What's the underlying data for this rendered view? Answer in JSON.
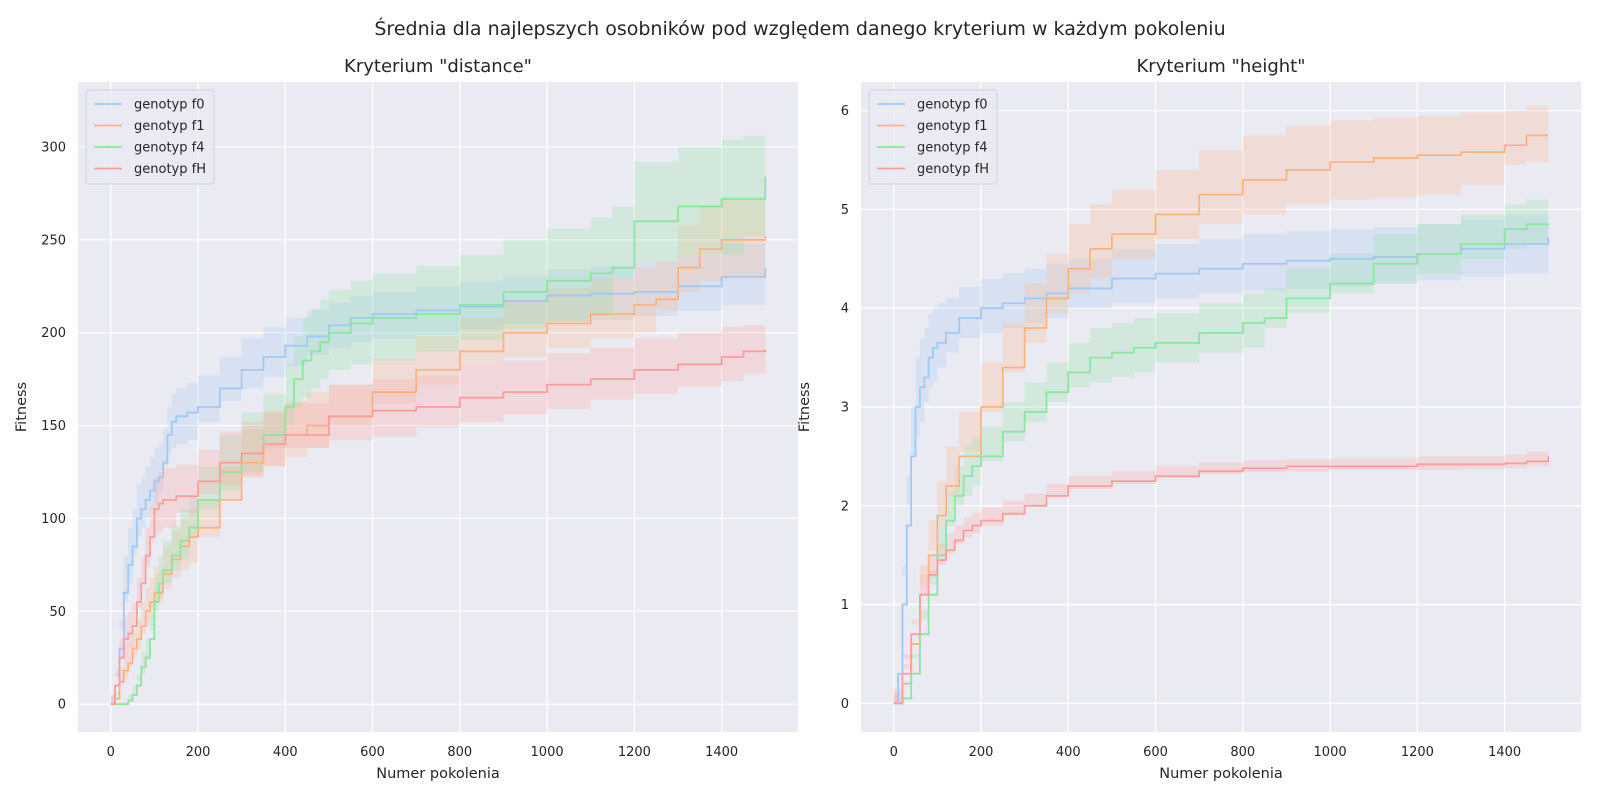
{
  "figure": {
    "suptitle": "Średnia dla najlepszych osobników pod względem danego kryterium w każdym pokoleniu"
  },
  "chart_data": [
    {
      "type": "line",
      "title": "Kryterium \"distance\"",
      "xlabel": "Numer pokolenia",
      "ylabel": "Fitness",
      "xlim": [
        -75,
        1575
      ],
      "ylim": [
        -15,
        335
      ],
      "xticks": [
        0,
        200,
        400,
        600,
        800,
        1000,
        1200,
        1400
      ],
      "yticks": [
        0,
        50,
        100,
        150,
        200,
        250,
        300
      ],
      "grid": true,
      "legend": "top-left",
      "series": [
        {
          "name": "genotyp f0",
          "color": "#a1c9f4",
          "x": [
            0,
            10,
            20,
            30,
            40,
            50,
            60,
            70,
            80,
            90,
            100,
            110,
            120,
            130,
            140,
            150,
            175,
            200,
            250,
            300,
            350,
            400,
            450,
            500,
            550,
            600,
            700,
            800,
            900,
            1000,
            1100,
            1200,
            1300,
            1400,
            1500
          ],
          "y": [
            0,
            10,
            30,
            60,
            75,
            85,
            100,
            105,
            110,
            115,
            120,
            122,
            130,
            145,
            152,
            155,
            157,
            160,
            170,
            180,
            187,
            193,
            198,
            204,
            208,
            210,
            212,
            214,
            217,
            220,
            221,
            222,
            225,
            230,
            235
          ],
          "band_low": [
            0,
            5,
            15,
            40,
            55,
            65,
            80,
            90,
            95,
            100,
            105,
            108,
            115,
            128,
            135,
            138,
            140,
            142,
            152,
            163,
            170,
            176,
            182,
            188,
            192,
            195,
            197,
            199,
            202,
            205,
            206,
            207,
            209,
            212,
            215
          ],
          "band_high": [
            0,
            18,
            45,
            80,
            95,
            105,
            118,
            122,
            128,
            133,
            138,
            140,
            148,
            160,
            167,
            170,
            173,
            177,
            187,
            197,
            203,
            208,
            212,
            216,
            220,
            222,
            225,
            228,
            231,
            234,
            236,
            238,
            242,
            248,
            255
          ]
        },
        {
          "name": "genotyp f1",
          "color": "#ffb482",
          "x": [
            0,
            10,
            20,
            30,
            40,
            50,
            60,
            70,
            80,
            90,
            100,
            120,
            140,
            160,
            180,
            200,
            250,
            300,
            350,
            400,
            450,
            500,
            600,
            700,
            800,
            900,
            1000,
            1100,
            1200,
            1250,
            1300,
            1350,
            1400,
            1500
          ],
          "y": [
            0,
            3,
            12,
            18,
            22,
            30,
            35,
            42,
            50,
            55,
            60,
            70,
            78,
            85,
            90,
            95,
            110,
            130,
            140,
            145,
            150,
            155,
            168,
            180,
            190,
            200,
            205,
            210,
            215,
            218,
            235,
            245,
            250,
            252
          ],
          "band_low": [
            0,
            1,
            5,
            10,
            14,
            20,
            25,
            30,
            38,
            42,
            46,
            55,
            62,
            68,
            72,
            76,
            90,
            110,
            122,
            128,
            133,
            138,
            150,
            162,
            172,
            182,
            187,
            192,
            197,
            200,
            212,
            222,
            228,
            230
          ],
          "band_high": [
            0,
            6,
            20,
            28,
            32,
            40,
            46,
            55,
            63,
            68,
            74,
            85,
            94,
            100,
            105,
            110,
            128,
            148,
            158,
            163,
            168,
            172,
            186,
            198,
            208,
            218,
            224,
            230,
            235,
            238,
            258,
            268,
            273,
            275
          ]
        },
        {
          "name": "genotyp f4",
          "color": "#8de5a1",
          "x": [
            0,
            20,
            40,
            50,
            60,
            70,
            80,
            90,
            100,
            110,
            120,
            140,
            160,
            180,
            200,
            250,
            300,
            350,
            400,
            420,
            440,
            460,
            480,
            500,
            550,
            600,
            700,
            800,
            900,
            1000,
            1100,
            1150,
            1200,
            1300,
            1400,
            1450,
            1500
          ],
          "y": [
            0,
            0,
            2,
            5,
            10,
            20,
            25,
            35,
            55,
            65,
            72,
            80,
            88,
            95,
            110,
            125,
            135,
            145,
            160,
            175,
            185,
            190,
            195,
            200,
            205,
            208,
            210,
            215,
            222,
            228,
            232,
            235,
            260,
            268,
            272,
            272,
            284
          ],
          "band_low": [
            0,
            0,
            0,
            2,
            5,
            12,
            16,
            24,
            40,
            50,
            57,
            65,
            72,
            78,
            90,
            105,
            115,
            125,
            138,
            150,
            160,
            165,
            170,
            175,
            180,
            183,
            185,
            190,
            196,
            202,
            206,
            209,
            230,
            238,
            242,
            242,
            252
          ],
          "band_high": [
            0,
            1,
            5,
            10,
            16,
            28,
            35,
            48,
            70,
            80,
            88,
            96,
            105,
            112,
            128,
            145,
            157,
            167,
            183,
            198,
            208,
            213,
            218,
            223,
            228,
            232,
            236,
            242,
            250,
            256,
            262,
            268,
            292,
            300,
            304,
            306,
            320
          ]
        },
        {
          "name": "genotyp fH",
          "color": "#ff9f9b",
          "x": [
            0,
            10,
            20,
            30,
            40,
            50,
            60,
            70,
            80,
            90,
            100,
            110,
            120,
            150,
            200,
            250,
            300,
            350,
            400,
            500,
            600,
            700,
            800,
            900,
            1000,
            1100,
            1200,
            1300,
            1400,
            1450,
            1500
          ],
          "y": [
            0,
            10,
            25,
            35,
            38,
            42,
            55,
            65,
            80,
            90,
            105,
            108,
            110,
            112,
            120,
            130,
            135,
            140,
            145,
            155,
            158,
            160,
            165,
            168,
            172,
            175,
            180,
            183,
            187,
            190,
            191
          ],
          "band_low": [
            0,
            5,
            15,
            24,
            27,
            31,
            43,
            52,
            65,
            74,
            88,
            91,
            93,
            95,
            103,
            113,
            118,
            123,
            128,
            138,
            142,
            144,
            149,
            152,
            156,
            159,
            164,
            167,
            171,
            174,
            178
          ],
          "band_high": [
            0,
            16,
            35,
            47,
            50,
            54,
            68,
            79,
            95,
            106,
            122,
            125,
            127,
            129,
            137,
            147,
            152,
            157,
            162,
            172,
            175,
            177,
            182,
            185,
            189,
            192,
            197,
            200,
            203,
            204,
            204
          ]
        }
      ]
    },
    {
      "type": "line",
      "title": "Kryterium \"height\"",
      "xlabel": "Numer pokolenia",
      "ylabel": "Fitness",
      "xlim": [
        -75,
        1575
      ],
      "ylim": [
        -0.29,
        6.29
      ],
      "xticks": [
        0,
        200,
        400,
        600,
        800,
        1000,
        1200,
        1400
      ],
      "yticks": [
        0,
        1,
        2,
        3,
        4,
        5,
        6
      ],
      "grid": true,
      "legend": "top-left",
      "series": [
        {
          "name": "genotyp f0",
          "color": "#a1c9f4",
          "x": [
            0,
            10,
            20,
            30,
            40,
            50,
            60,
            70,
            80,
            90,
            100,
            120,
            150,
            200,
            250,
            300,
            350,
            400,
            500,
            600,
            700,
            800,
            900,
            1000,
            1100,
            1200,
            1300,
            1400,
            1500
          ],
          "y": [
            0,
            0.3,
            1.0,
            1.8,
            2.5,
            3.0,
            3.2,
            3.3,
            3.5,
            3.6,
            3.65,
            3.75,
            3.9,
            4.0,
            4.05,
            4.1,
            4.15,
            4.2,
            4.3,
            4.35,
            4.4,
            4.45,
            4.48,
            4.5,
            4.52,
            4.55,
            4.6,
            4.65,
            4.72
          ],
          "band_low": [
            0,
            0.1,
            0.6,
            1.3,
            2.0,
            2.5,
            2.7,
            2.85,
            3.05,
            3.2,
            3.25,
            3.4,
            3.55,
            3.7,
            3.75,
            3.8,
            3.85,
            3.9,
            4.0,
            4.05,
            4.1,
            4.15,
            4.18,
            4.2,
            4.22,
            4.25,
            4.28,
            4.32,
            4.35
          ],
          "band_high": [
            0,
            0.6,
            1.4,
            2.3,
            3.0,
            3.5,
            3.7,
            3.8,
            3.95,
            4.0,
            4.05,
            4.1,
            4.22,
            4.3,
            4.35,
            4.4,
            4.45,
            4.5,
            4.6,
            4.65,
            4.7,
            4.75,
            4.78,
            4.8,
            4.82,
            4.85,
            4.9,
            4.95,
            5.05
          ]
        },
        {
          "name": "genotyp f1",
          "color": "#ffb482",
          "x": [
            0,
            20,
            40,
            60,
            80,
            100,
            120,
            150,
            200,
            250,
            300,
            350,
            400,
            450,
            500,
            600,
            700,
            800,
            900,
            1000,
            1100,
            1200,
            1300,
            1400,
            1450,
            1500
          ],
          "y": [
            0,
            0.2,
            0.6,
            1.1,
            1.5,
            1.9,
            2.2,
            2.5,
            3.0,
            3.4,
            3.8,
            4.1,
            4.4,
            4.6,
            4.75,
            4.95,
            5.15,
            5.3,
            5.4,
            5.48,
            5.52,
            5.55,
            5.58,
            5.65,
            5.75,
            5.75
          ],
          "band_low": [
            0,
            0.1,
            0.4,
            0.8,
            1.2,
            1.55,
            1.8,
            2.1,
            2.55,
            2.95,
            3.35,
            3.65,
            3.95,
            4.15,
            4.3,
            4.5,
            4.7,
            4.85,
            4.95,
            5.05,
            5.1,
            5.12,
            5.15,
            5.25,
            5.45,
            5.48
          ],
          "band_high": [
            0,
            0.35,
            0.85,
            1.4,
            1.85,
            2.25,
            2.6,
            2.95,
            3.45,
            3.85,
            4.25,
            4.55,
            4.85,
            5.05,
            5.2,
            5.4,
            5.6,
            5.75,
            5.85,
            5.9,
            5.93,
            5.95,
            5.98,
            6.0,
            6.05,
            6.05
          ]
        },
        {
          "name": "genotyp f4",
          "color": "#8de5a1",
          "x": [
            0,
            20,
            40,
            60,
            80,
            100,
            120,
            140,
            160,
            180,
            200,
            250,
            300,
            350,
            400,
            450,
            500,
            550,
            600,
            700,
            800,
            850,
            900,
            1000,
            1100,
            1200,
            1300,
            1400,
            1450,
            1500
          ],
          "y": [
            0,
            0.05,
            0.3,
            0.7,
            1.1,
            1.5,
            1.85,
            2.1,
            2.3,
            2.4,
            2.5,
            2.75,
            2.95,
            3.15,
            3.35,
            3.5,
            3.55,
            3.6,
            3.65,
            3.75,
            3.85,
            3.9,
            4.1,
            4.25,
            4.45,
            4.55,
            4.65,
            4.8,
            4.85,
            4.86
          ],
          "band_low": [
            0,
            0,
            0.15,
            0.45,
            0.85,
            1.2,
            1.55,
            1.8,
            2.0,
            2.1,
            2.2,
            2.45,
            2.65,
            2.85,
            3.05,
            3.2,
            3.25,
            3.3,
            3.35,
            3.45,
            3.55,
            3.6,
            3.8,
            3.95,
            4.15,
            4.25,
            4.35,
            4.5,
            4.6,
            4.65
          ],
          "band_high": [
            0,
            0.15,
            0.5,
            0.95,
            1.35,
            1.8,
            2.15,
            2.4,
            2.6,
            2.7,
            2.8,
            3.05,
            3.25,
            3.45,
            3.65,
            3.8,
            3.85,
            3.9,
            3.95,
            4.05,
            4.15,
            4.2,
            4.4,
            4.55,
            4.75,
            4.85,
            4.95,
            5.05,
            5.1,
            5.1
          ]
        },
        {
          "name": "genotyp fH",
          "color": "#ff9f9b",
          "x": [
            0,
            20,
            40,
            60,
            80,
            100,
            120,
            140,
            160,
            180,
            200,
            250,
            300,
            350,
            400,
            500,
            600,
            700,
            800,
            900,
            1000,
            1200,
            1300,
            1400,
            1450,
            1500
          ],
          "y": [
            0,
            0.3,
            0.7,
            1.1,
            1.3,
            1.45,
            1.55,
            1.65,
            1.75,
            1.8,
            1.85,
            1.92,
            2.0,
            2.1,
            2.2,
            2.25,
            2.3,
            2.35,
            2.38,
            2.4,
            2.4,
            2.42,
            2.42,
            2.43,
            2.45,
            2.5
          ],
          "band_low": [
            0,
            0.15,
            0.5,
            0.9,
            1.1,
            1.28,
            1.4,
            1.52,
            1.62,
            1.68,
            1.72,
            1.8,
            1.9,
            2.0,
            2.1,
            2.17,
            2.22,
            2.28,
            2.32,
            2.34,
            2.35,
            2.36,
            2.36,
            2.37,
            2.38,
            2.4
          ],
          "band_high": [
            0,
            0.45,
            0.9,
            1.3,
            1.5,
            1.62,
            1.72,
            1.8,
            1.88,
            1.93,
            1.98,
            2.05,
            2.12,
            2.22,
            2.3,
            2.35,
            2.4,
            2.44,
            2.46,
            2.47,
            2.48,
            2.5,
            2.5,
            2.52,
            2.55,
            2.6
          ]
        }
      ]
    }
  ]
}
